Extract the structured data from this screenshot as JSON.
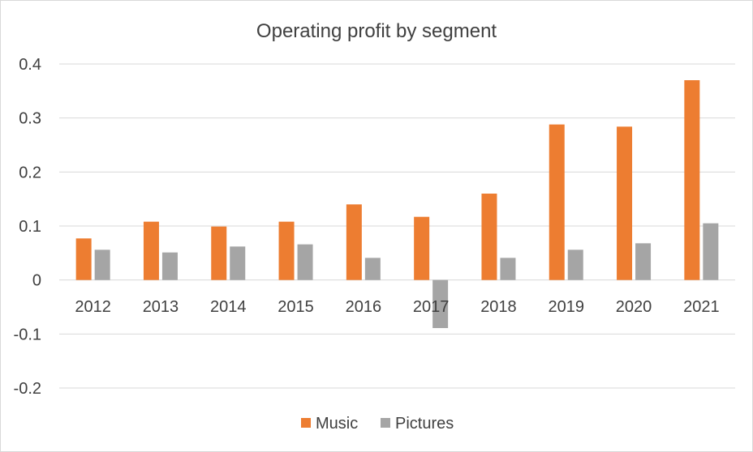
{
  "chart_data": {
    "type": "bar",
    "title": "Operating profit by segment",
    "xlabel": "",
    "ylabel": "",
    "categories": [
      "2012",
      "2013",
      "2014",
      "2015",
      "2016",
      "2017",
      "2018",
      "2019",
      "2020",
      "2021"
    ],
    "series": [
      {
        "name": "Music",
        "color": "#ED7D31",
        "values": [
          0.077,
          0.108,
          0.099,
          0.108,
          0.14,
          0.117,
          0.16,
          0.288,
          0.284,
          0.37
        ]
      },
      {
        "name": "Pictures",
        "color": "#A5A5A5",
        "values": [
          0.056,
          0.051,
          0.062,
          0.066,
          0.041,
          -0.089,
          0.041,
          0.056,
          0.068,
          0.105
        ]
      }
    ],
    "ylim": [
      -0.2,
      0.4
    ],
    "yticks": [
      -0.2,
      -0.1,
      0,
      0.1,
      0.2,
      0.3,
      0.4
    ],
    "ytick_labels": [
      "-0.2",
      "-0.1",
      "0",
      "0.1",
      "0.2",
      "0.3",
      "0.4"
    ],
    "grid": true,
    "legend": "bottom"
  }
}
